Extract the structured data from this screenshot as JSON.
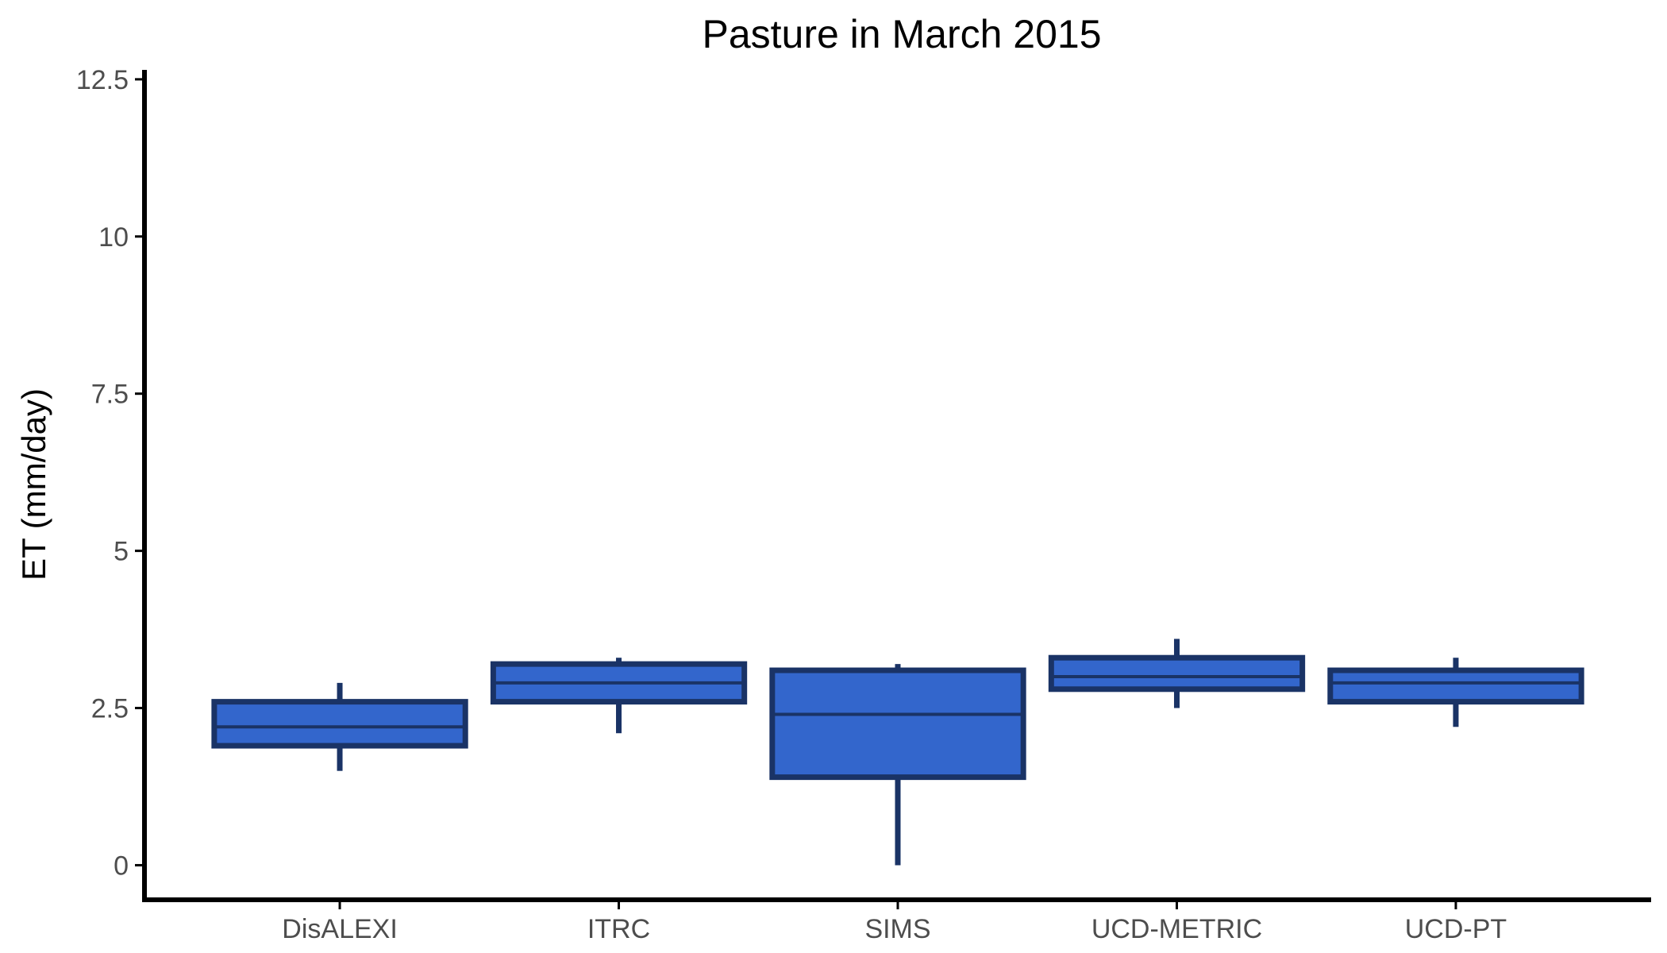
{
  "chart_data": {
    "type": "boxplot",
    "title": "Pasture in March 2015",
    "xlabel": "",
    "ylabel": "ET (mm/day)",
    "ylim": [
      -0.55,
      12.65
    ],
    "yticks": [
      0,
      2.5,
      5,
      7.5,
      10,
      12.5
    ],
    "ytick_labels": [
      "0",
      "2.5",
      "5",
      "7.5",
      "10",
      "12.5"
    ],
    "grid": false,
    "legend": "none",
    "categories": [
      "DisALEXI",
      "ITRC",
      "SIMS",
      "UCD-METRIC",
      "UCD-PT"
    ],
    "boxes": [
      {
        "category": "DisALEXI",
        "whisker_low": 1.5,
        "q1": 1.9,
        "median": 2.2,
        "q3": 2.6,
        "whisker_high": 2.9
      },
      {
        "category": "ITRC",
        "whisker_low": 2.1,
        "q1": 2.6,
        "median": 2.9,
        "q3": 3.2,
        "whisker_high": 3.3
      },
      {
        "category": "SIMS",
        "whisker_low": 0.0,
        "q1": 1.4,
        "median": 2.4,
        "q3": 3.1,
        "whisker_high": 3.2
      },
      {
        "category": "UCD-METRIC",
        "whisker_low": 2.5,
        "q1": 2.8,
        "median": 3.0,
        "q3": 3.3,
        "whisker_high": 3.6
      },
      {
        "category": "UCD-PT",
        "whisker_low": 2.2,
        "q1": 2.6,
        "median": 2.9,
        "q3": 3.1,
        "whisker_high": 3.3
      }
    ],
    "colors": {
      "box_fill": "#3366cc",
      "box_edge": "#1a3366",
      "axis": "#000000",
      "tick_text": "#4d4d4d"
    }
  }
}
